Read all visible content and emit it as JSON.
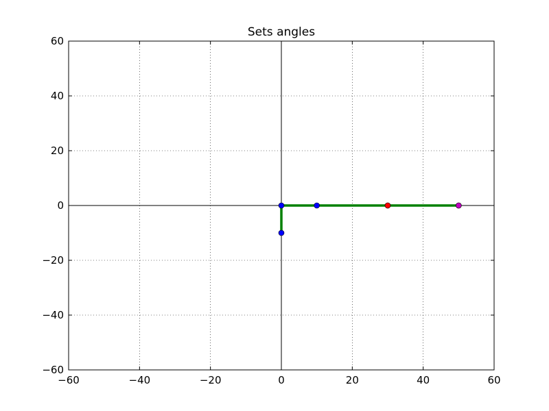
{
  "chart_data": {
    "type": "line",
    "title": "Sets angles",
    "xlabel": "",
    "ylabel": "",
    "xlim": [
      -60,
      60
    ],
    "ylim": [
      -60,
      60
    ],
    "xticks": [
      -60,
      -40,
      -20,
      0,
      20,
      40,
      60
    ],
    "yticks": [
      -60,
      -40,
      -20,
      0,
      20,
      40,
      60
    ],
    "grid": true,
    "zero_axes": true,
    "series": [
      {
        "color": "#008000",
        "marker_color": "#0000ff",
        "points": [
          {
            "x": 0,
            "y": -10
          },
          {
            "x": 0,
            "y": 0
          },
          {
            "x": 10,
            "y": 0
          },
          {
            "x": 30,
            "y": 0
          },
          {
            "x": 50,
            "y": 0
          }
        ]
      }
    ],
    "highlight_points": [
      {
        "x": 30,
        "y": 0,
        "color": "#ff0000"
      },
      {
        "x": 50,
        "y": 0,
        "color": "#bf00bf"
      }
    ]
  }
}
